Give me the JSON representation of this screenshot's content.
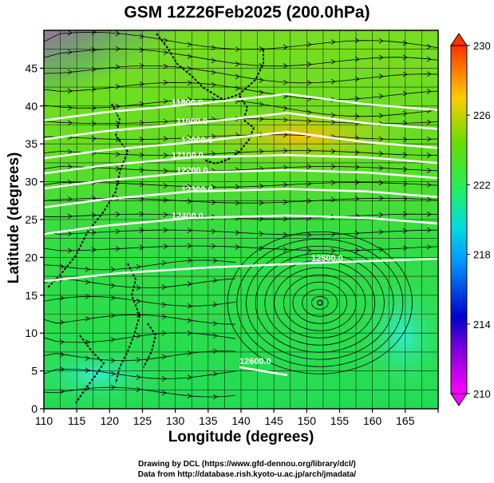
{
  "title": "GSM 12Z26Feb2025 (200.0hPa)",
  "credits": {
    "line1": "Drawing by DCL (https://www.gfd-dennou.org/library/dcl/)",
    "line2": "Data from http://database.rish.kyoto-u.ac.jp/arch/jmadata/"
  },
  "chart_data": {
    "type": "heatmap",
    "title": "GSM 12Z26Feb2025 (200.0hPa)",
    "xlabel": "Longitude (degrees)",
    "ylabel": "Latitude  (degrees)",
    "xlim": [
      110,
      170
    ],
    "ylim": [
      0,
      50
    ],
    "x_ticks": [
      110,
      115,
      120,
      125,
      130,
      135,
      140,
      145,
      150,
      155,
      160,
      165
    ],
    "y_ticks": [
      0,
      5,
      10,
      15,
      20,
      25,
      30,
      35,
      40,
      45
    ],
    "grid": true,
    "colorbar": {
      "min": 210,
      "max": 230,
      "labels": [
        210,
        214,
        218,
        222,
        226,
        230
      ],
      "colors": [
        "#ff00ff",
        "#6600dd",
        "#0000cc",
        "#0066ff",
        "#00ccff",
        "#00ff99",
        "#22dd22",
        "#88dd00",
        "#ffcc00",
        "#ff8800",
        "#ff3300"
      ]
    },
    "contours": [
      {
        "label": "11800.0",
        "lat": 40.0
      },
      {
        "label": "11900.0",
        "lat": 37.5
      },
      {
        "label": "12000.0",
        "lat": 35.0
      },
      {
        "label": "12100.0",
        "lat": 33.0
      },
      {
        "label": "12200.0",
        "lat": 31.0
      },
      {
        "label": "12300.0",
        "lat": 28.5
      },
      {
        "label": "12400.0",
        "lat": 25.0
      },
      {
        "label": "12500.0",
        "lat": 19.5
      },
      {
        "label": "12600.0",
        "lat": 5.5
      }
    ],
    "vortex": {
      "lon": 152,
      "lat": 14
    }
  }
}
